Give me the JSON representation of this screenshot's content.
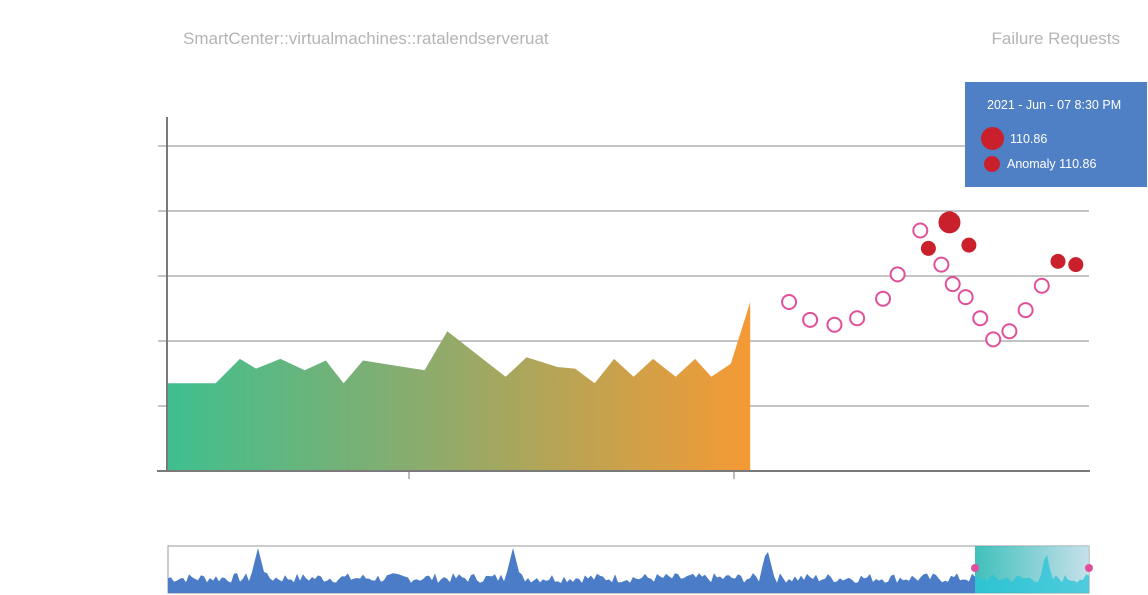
{
  "header": {
    "title": "SmartCenter::virtualmachines::ratalendserveruat",
    "metric": "Failure Requests"
  },
  "tooltip": {
    "time": "2021 - Jun - 07  8:30 PM",
    "value_label": "110.86",
    "anomaly_label": "Anomaly 110.86"
  },
  "colors": {
    "area_start": "#3fbf8f",
    "area_mid": "#8dab6c",
    "area_end": "#f59a34",
    "anomaly": "#c9202c",
    "forecast_ring": "#e0509a",
    "tooltip_bg": "#4f7fc4",
    "navigator_fill": "#4a7cc7",
    "navigator_selection": "#20b8b8"
  },
  "chart_data": {
    "type": "area",
    "ylim": [
      0,
      110
    ],
    "grid": true,
    "legend": "none",
    "historical": {
      "x": [
        0,
        1,
        2,
        3,
        4,
        5,
        6,
        7,
        8,
        9,
        10,
        11,
        12,
        13,
        14,
        15,
        16,
        17,
        18,
        19,
        20,
        21,
        22,
        23,
        24,
        25,
        26,
        27,
        28,
        29,
        30,
        31,
        32,
        33,
        34,
        35,
        36,
        37,
        38,
        39,
        40,
        41,
        42,
        43,
        44,
        45,
        46,
        47,
        48,
        49,
        50,
        51,
        52,
        53,
        54,
        55,
        56,
        57,
        58,
        59,
        60,
        61,
        62,
        63,
        64,
        65,
        66,
        67,
        68,
        69,
        70,
        71,
        72,
        73,
        74,
        75,
        76,
        77,
        78,
        79,
        80,
        81,
        82,
        83,
        84,
        85,
        86,
        87,
        88,
        89
      ],
      "y": [
        27,
        27,
        27,
        27,
        27,
        27,
        27,
        27,
        27,
        27,
        27,
        27,
        27,
        27,
        27,
        27,
        34,
        32,
        31,
        30,
        30,
        34,
        35,
        33,
        31,
        30,
        34,
        31,
        28,
        28,
        35,
        35,
        34,
        34,
        33,
        33,
        30,
        30,
        32,
        33,
        41,
        39,
        37,
        37,
        35,
        32,
        30,
        30,
        28,
        29,
        35,
        34,
        32,
        32,
        31,
        30,
        30,
        27,
        27,
        27,
        30,
        30,
        30,
        30,
        30,
        30,
        30,
        30,
        30,
        30,
        30,
        30,
        30,
        30,
        33,
        36,
        33,
        30,
        30,
        30,
        34,
        34,
        32,
        34,
        30,
        30,
        32,
        32,
        40,
        50
      ],
      "points": [
        [
          0,
          27
        ],
        [
          3,
          27
        ],
        [
          4.5,
          34.5
        ],
        [
          5.5,
          31.5
        ],
        [
          7,
          34.5
        ],
        [
          8.5,
          31
        ],
        [
          9.8,
          34
        ],
        [
          10.9,
          27
        ],
        [
          12.1,
          34
        ],
        [
          15.9,
          31
        ],
        [
          17.3,
          43
        ],
        [
          20.9,
          29
        ],
        [
          22.2,
          35
        ],
        [
          24.1,
          32
        ],
        [
          25.2,
          31.5
        ],
        [
          26.4,
          27
        ],
        [
          27.6,
          34.5
        ],
        [
          28.8,
          29
        ],
        [
          30,
          34.5
        ],
        [
          31.4,
          29
        ],
        [
          32.6,
          34.5
        ],
        [
          33.6,
          29
        ],
        [
          34.8,
          33
        ],
        [
          36,
          52
        ],
        [
          36,
          0
        ]
      ]
    },
    "forecast": [
      {
        "x": 38.4,
        "y": 52
      },
      {
        "x": 39.7,
        "y": 46.5
      },
      {
        "x": 41.2,
        "y": 45
      },
      {
        "x": 42.6,
        "y": 47
      },
      {
        "x": 44.2,
        "y": 53
      },
      {
        "x": 45.1,
        "y": 60.5
      },
      {
        "x": 46.5,
        "y": 74
      },
      {
        "x": 47.8,
        "y": 63.5
      },
      {
        "x": 48.5,
        "y": 57.5
      },
      {
        "x": 49.3,
        "y": 53.5
      },
      {
        "x": 50.2,
        "y": 47
      },
      {
        "x": 51.0,
        "y": 40.5
      },
      {
        "x": 52.0,
        "y": 43
      },
      {
        "x": 53.0,
        "y": 49.5
      },
      {
        "x": 54.0,
        "y": 57
      }
    ],
    "anomalies": [
      {
        "x": 47.0,
        "y": 68.5,
        "highlight": false
      },
      {
        "x": 48.3,
        "y": 76.5,
        "highlight": true
      },
      {
        "x": 49.5,
        "y": 69.5,
        "highlight": false
      },
      {
        "x": 55.0,
        "y": 64.5,
        "highlight": false
      },
      {
        "x": 56.1,
        "y": 63.5,
        "highlight": false
      }
    ]
  }
}
